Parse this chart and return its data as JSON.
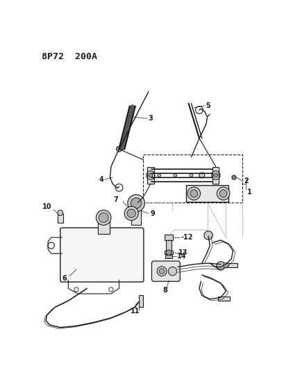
{
  "title": "8P72  200A",
  "background_color": "#ffffff",
  "line_color": "#1a1a1a",
  "label_fontsize": 7,
  "header_fontsize": 9.5,
  "fig_w": 4.09,
  "fig_h": 5.33,
  "dpi": 100
}
